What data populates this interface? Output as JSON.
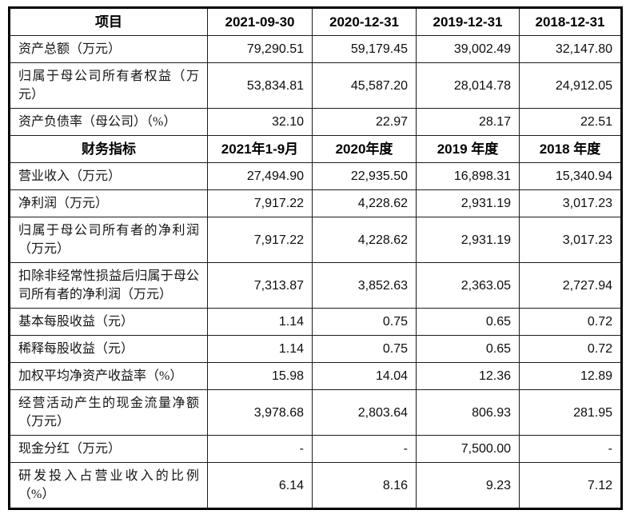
{
  "table": {
    "top_header": {
      "item_label": "项目",
      "periods": [
        "2021-09-30",
        "2020-12-31",
        "2019-12-31",
        "2018-12-31"
      ]
    },
    "balance_rows": [
      {
        "label": "资产总额（万元）",
        "values": [
          "79,290.51",
          "59,179.45",
          "39,002.49",
          "32,147.80"
        ]
      },
      {
        "label": "归属于母公司所有者权益（万元）",
        "values": [
          "53,834.81",
          "45,587.20",
          "28,014.78",
          "24,912.05"
        ]
      },
      {
        "label": "资产负债率（母公司）（%）",
        "values": [
          "32.10",
          "22.97",
          "28.17",
          "22.51"
        ]
      }
    ],
    "mid_header": {
      "item_label": "财务指标",
      "periods": [
        "2021年1-9月",
        "2020年度",
        "2019 年度",
        "2018 年度"
      ]
    },
    "indicator_rows": [
      {
        "label": "营业收入（万元）",
        "values": [
          "27,494.90",
          "22,935.50",
          "16,898.31",
          "15,340.94"
        ]
      },
      {
        "label": "净利润（万元）",
        "values": [
          "7,917.22",
          "4,228.62",
          "2,931.19",
          "3,017.23"
        ]
      },
      {
        "label": "归属于母公司所有者的净利润（万元）",
        "values": [
          "7,917.22",
          "4,228.62",
          "2,931.19",
          "3,017.23"
        ]
      },
      {
        "label": "扣除非经常性损益后归属于母公司所有者的净利润（万元）",
        "values": [
          "7,313.87",
          "3,852.63",
          "2,363.05",
          "2,727.94"
        ]
      },
      {
        "label": "基本每股收益（元）",
        "values": [
          "1.14",
          "0.75",
          "0.65",
          "0.72"
        ]
      },
      {
        "label": "稀释每股收益（元）",
        "values": [
          "1.14",
          "0.75",
          "0.65",
          "0.72"
        ]
      },
      {
        "label": "加权平均净资产收益率（%）",
        "values": [
          "15.98",
          "14.04",
          "12.36",
          "12.89"
        ]
      },
      {
        "label": "经营活动产生的现金流量净额（万元）",
        "values": [
          "3,978.68",
          "2,803.64",
          "806.93",
          "281.95"
        ]
      },
      {
        "label": "现金分红（万元）",
        "values": [
          "-",
          "-",
          "7,500.00",
          "-"
        ]
      },
      {
        "label": "研发投入占营业收入的比例（%）",
        "values": [
          "6.14",
          "8.16",
          "9.23",
          "7.12"
        ]
      }
    ]
  }
}
